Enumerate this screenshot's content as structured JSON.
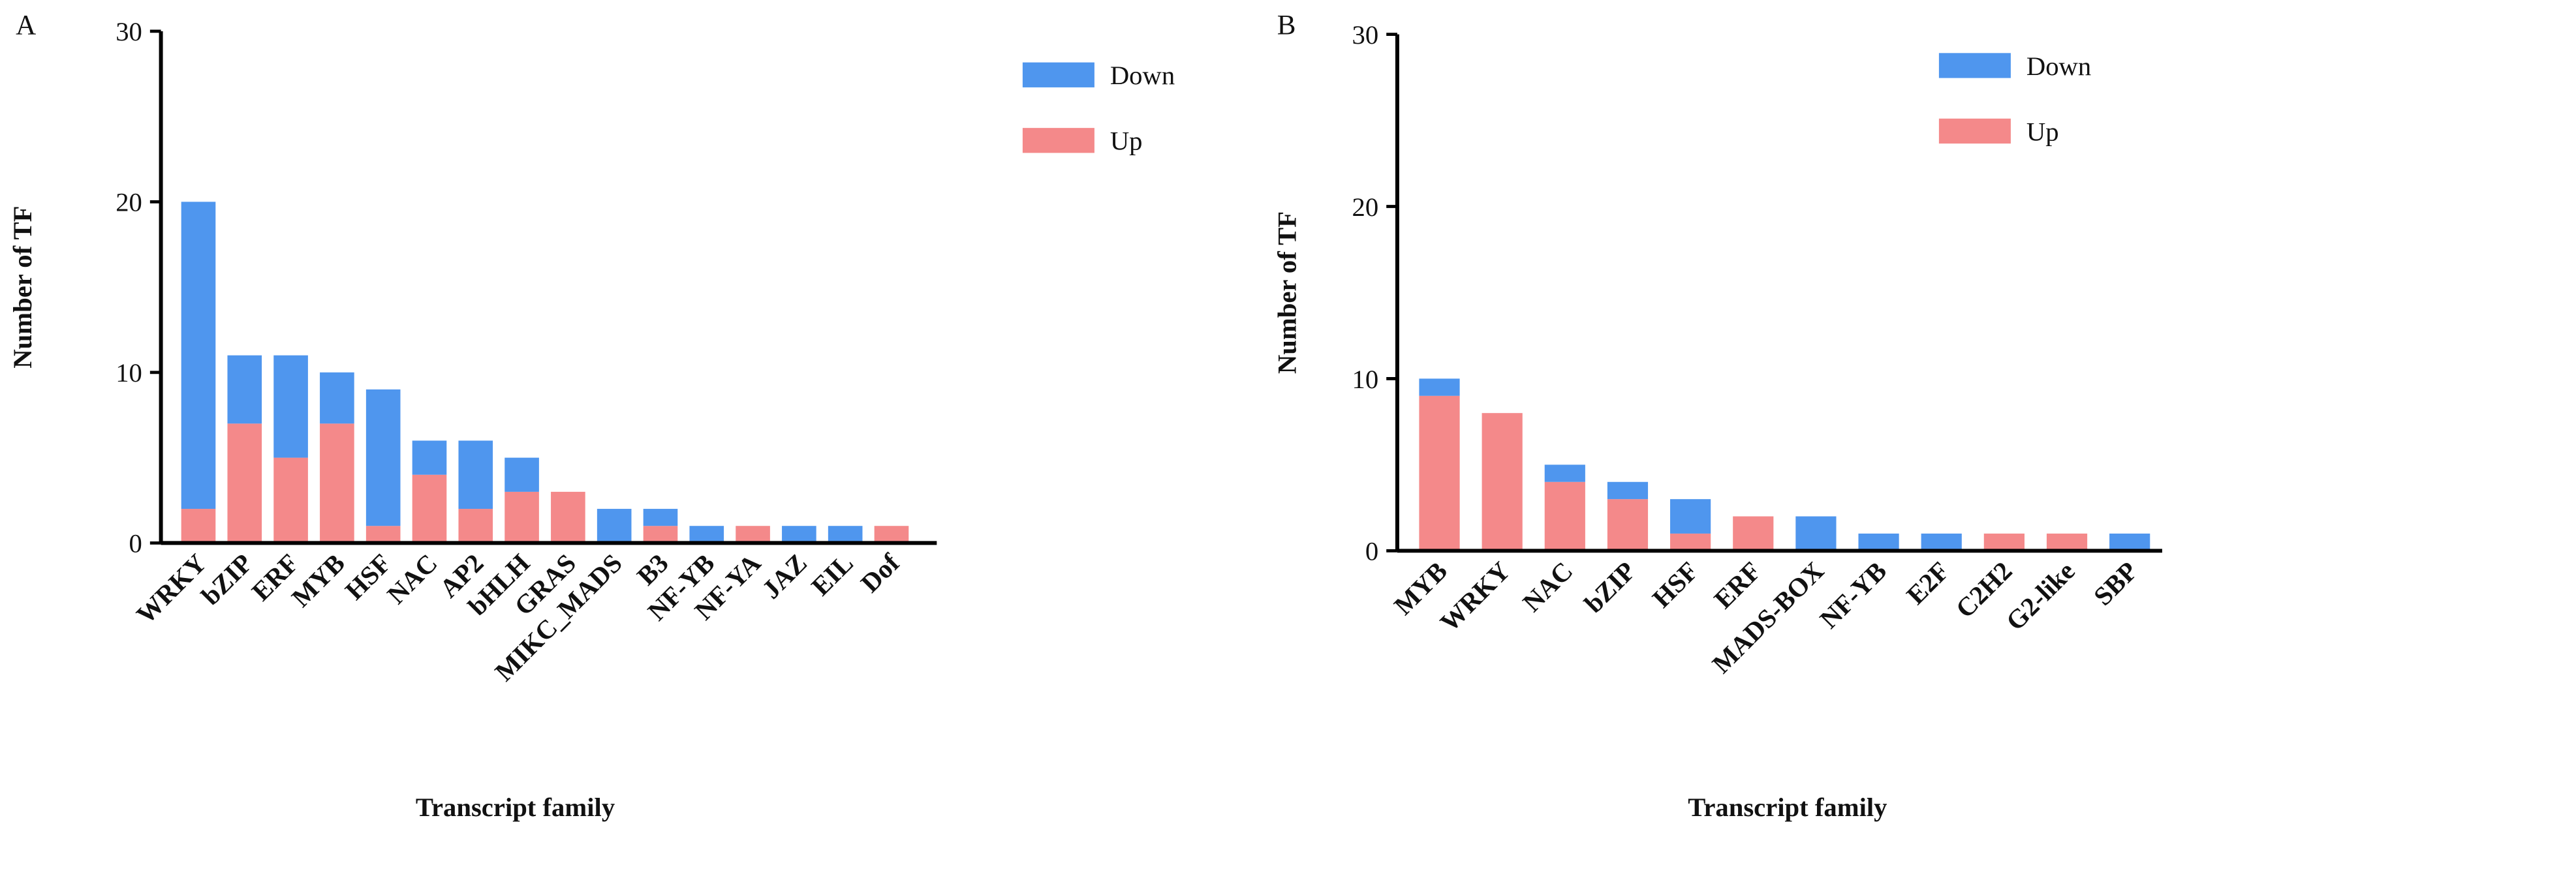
{
  "chart_data": [
    {
      "type": "bar",
      "stacked": true,
      "panel_label": "A",
      "y_label": "Number of TF",
      "x_label": "Transcript family",
      "categories": [
        "WRKY",
        "bZIP",
        "ERF",
        "MYB",
        "HSF",
        "NAC",
        "AP2",
        "bHLH",
        "GRAS",
        "MIKC_MADS",
        "B3",
        "NF-YB",
        "NF-YA",
        "JAZ",
        "EIL",
        "Dof"
      ],
      "series": [
        {
          "name": "Up",
          "color": "#f4898a",
          "values": [
            2,
            7,
            5,
            7,
            1,
            4,
            2,
            3,
            3,
            0,
            1,
            0,
            1,
            0,
            0,
            1
          ]
        },
        {
          "name": "Down",
          "color": "#4f96ee",
          "values": [
            18,
            4,
            6,
            3,
            8,
            2,
            4,
            2,
            0,
            2,
            1,
            1,
            0,
            1,
            1,
            0
          ]
        }
      ],
      "ylim": [
        0,
        30
      ],
      "yticks": [
        0,
        10,
        20,
        30
      ]
    },
    {
      "type": "bar",
      "stacked": true,
      "panel_label": "B",
      "y_label": "Number of TF",
      "x_label": "Transcript family",
      "categories": [
        "MYB",
        "WRKY",
        "NAC",
        "bZIP",
        "HSF",
        "ERF",
        "MADS-BOX",
        "NF-YB",
        "E2F",
        "C2H2",
        "G2-like",
        "SBP"
      ],
      "series": [
        {
          "name": "Up",
          "color": "#f4898a",
          "values": [
            9,
            8,
            4,
            3,
            1,
            2,
            0,
            0,
            0,
            1,
            1,
            0
          ]
        },
        {
          "name": "Down",
          "color": "#4f96ee",
          "values": [
            1,
            0,
            1,
            1,
            2,
            0,
            2,
            1,
            1,
            0,
            0,
            1
          ]
        }
      ],
      "ylim": [
        0,
        30
      ],
      "yticks": [
        0,
        10,
        20,
        30
      ]
    }
  ]
}
